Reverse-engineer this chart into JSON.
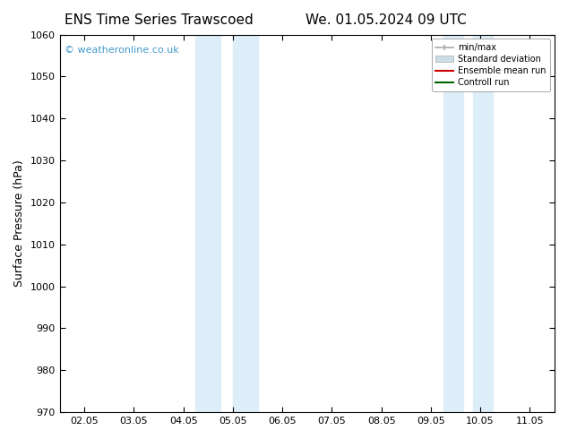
{
  "title_left": "ENS Time Series Trawscoed",
  "title_right": "We. 01.05.2024 09 UTC",
  "ylabel": "Surface Pressure (hPa)",
  "ylim": [
    970,
    1060
  ],
  "yticks": [
    970,
    980,
    990,
    1000,
    1010,
    1020,
    1030,
    1040,
    1050,
    1060
  ],
  "xtick_labels": [
    "02.05",
    "03.05",
    "04.05",
    "05.05",
    "06.05",
    "07.05",
    "08.05",
    "09.05",
    "10.05",
    "11.05"
  ],
  "xtick_positions": [
    0,
    1,
    2,
    3,
    4,
    5,
    6,
    7,
    8,
    9
  ],
  "shaded_regions": [
    {
      "x_start": 2.25,
      "x_end": 2.75,
      "color": "#ddeef8"
    },
    {
      "x_start": 3.0,
      "x_end": 3.5,
      "color": "#ddeef8"
    },
    {
      "x_start": 7.25,
      "x_end": 7.65,
      "color": "#ddeef8"
    },
    {
      "x_start": 7.85,
      "x_end": 8.25,
      "color": "#ddeef8"
    }
  ],
  "watermark": "© weatheronline.co.uk",
  "watermark_color": "#4499cc",
  "legend_items": [
    {
      "label": "min/max",
      "color": "#aaaaaa",
      "linestyle": "-",
      "linewidth": 1.2,
      "type": "line_with_caps"
    },
    {
      "label": "Standard deviation",
      "color": "#ccdde8",
      "linestyle": "-",
      "linewidth": 8,
      "type": "patch"
    },
    {
      "label": "Ensemble mean run",
      "color": "#cc0000",
      "linestyle": "-",
      "linewidth": 1.5,
      "type": "line"
    },
    {
      "label": "Controll run",
      "color": "#006600",
      "linestyle": "-",
      "linewidth": 1.5,
      "type": "line"
    }
  ],
  "bg_color": "#ffffff",
  "spine_color": "#000000",
  "title_fontsize": 11,
  "tick_fontsize": 8,
  "axis_label_fontsize": 9
}
